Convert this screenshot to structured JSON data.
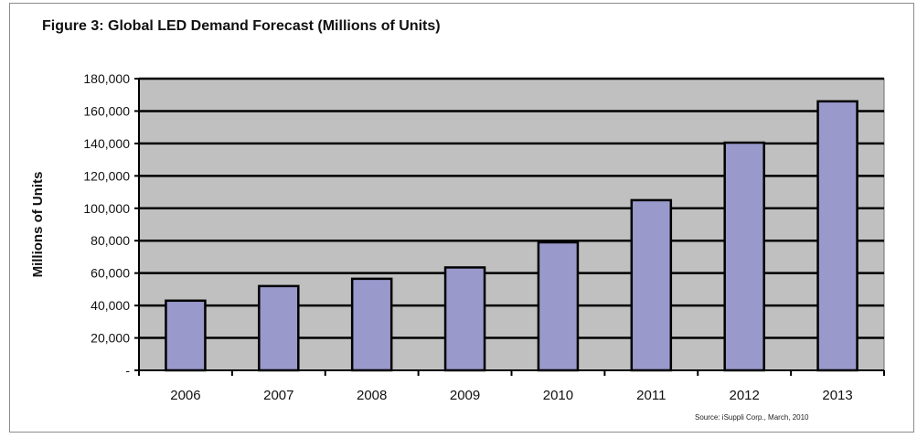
{
  "figure": {
    "title": "Figure 3: Global LED Demand Forecast (Millions of Units)",
    "source": "Source: iSuppli Corp., March, 2010"
  },
  "chart_data": {
    "type": "bar",
    "title": "Figure 3: Global LED Demand Forecast (Millions of Units)",
    "xlabel": "",
    "ylabel": "Millions of Units",
    "categories": [
      "2006",
      "2007",
      "2008",
      "2009",
      "2010",
      "2011",
      "2012",
      "2013"
    ],
    "values": [
      43000,
      52000,
      56500,
      63500,
      79000,
      105000,
      140500,
      166000
    ],
    "ylim": [
      0,
      180000
    ],
    "yticks": [
      0,
      20000,
      40000,
      60000,
      80000,
      100000,
      120000,
      140000,
      160000,
      180000
    ],
    "ytick_labels": [
      "-",
      "20,000",
      "40,000",
      "60,000",
      "80,000",
      "100,000",
      "120,000",
      "140,000",
      "160,000",
      "180,000"
    ],
    "grid": true,
    "bar_color": "#9999cc",
    "plot_background": "#c0c0c0"
  }
}
